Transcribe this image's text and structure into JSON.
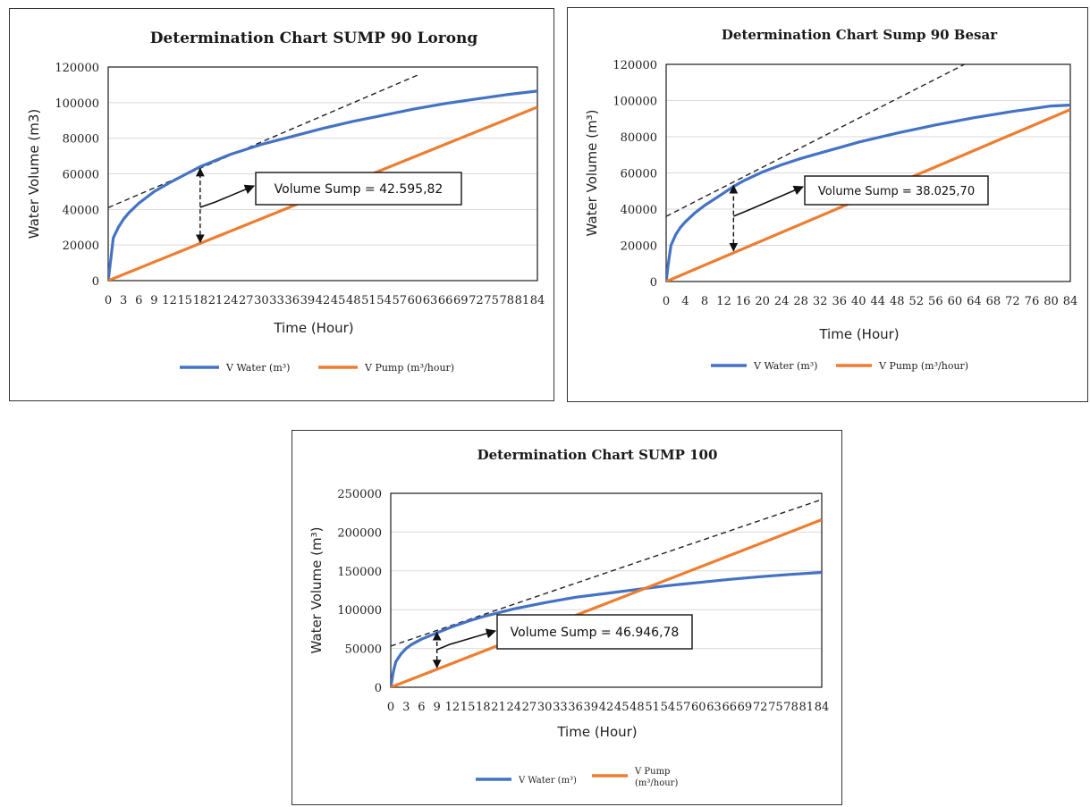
{
  "colors": {
    "water": "#4472C4",
    "pump": "#ED7D31",
    "grid": "#d9d9d9",
    "tangent": "#222222"
  },
  "chart_data": [
    {
      "type": "line",
      "title": "Determination Chart SUMP 90 Lorong",
      "xlabel": "Time (Hour)",
      "ylabel": "Water Volume (m3)",
      "xlim": [
        0,
        84
      ],
      "ylim": [
        0,
        120000
      ],
      "y_ticks": [
        "0",
        "20000",
        "40000",
        "60000",
        "80000",
        "100000",
        "120000"
      ],
      "x_tick_labels": [
        "0",
        "3",
        "6",
        "9",
        "12",
        "15",
        "18",
        "21",
        "24",
        "27",
        "30",
        "33",
        "36",
        "39",
        "42",
        "45",
        "48",
        "51",
        "54",
        "57",
        "60",
        "63",
        "66",
        "69",
        "72",
        "75",
        "78",
        "81",
        "84"
      ],
      "grid": true,
      "legend": "bottom",
      "series": [
        {
          "name": "V Water (m³)",
          "x": [
            0,
            0.5,
            1,
            2,
            3,
            4,
            6,
            9,
            12,
            15,
            18,
            24,
            30,
            36,
            42,
            48,
            54,
            60,
            66,
            72,
            78,
            84
          ],
          "values": [
            0,
            12000,
            24000,
            30000,
            34500,
            38000,
            43500,
            50000,
            55000,
            59500,
            64000,
            71000,
            76500,
            81000,
            85500,
            89500,
            93000,
            96500,
            99500,
            102000,
            104500,
            106500
          ]
        },
        {
          "name": "V Pump (m³/hour)",
          "x": [
            0,
            84
          ],
          "values": [
            0,
            97500
          ]
        }
      ],
      "tangent": {
        "x": [
          0,
          61
        ],
        "values": [
          41000,
          116000
        ]
      },
      "arrow_x": 18,
      "arrow_y": [
        20500,
        64000
      ],
      "annotation": "Volume Sump = 42.595,82"
    },
    {
      "type": "line",
      "title": "Determination Chart Sump 90 Besar",
      "xlabel": "Time (Hour)",
      "ylabel": "Water Volume (m³)",
      "xlim": [
        0,
        84
      ],
      "ylim": [
        0,
        120000
      ],
      "y_ticks": [
        "0",
        "20000",
        "40000",
        "60000",
        "80000",
        "100000",
        "120000"
      ],
      "x_tick_labels": [
        "0",
        "4",
        "8",
        "12",
        "16",
        "20",
        "24",
        "28",
        "32",
        "36",
        "40",
        "44",
        "48",
        "52",
        "56",
        "60",
        "64",
        "68",
        "72",
        "76",
        "80",
        "84"
      ],
      "grid": true,
      "legend": "bottom",
      "series": [
        {
          "name": "V Water (m³)",
          "x": [
            0,
            0.5,
            1,
            2,
            3,
            4,
            6,
            8,
            10,
            12,
            14,
            16,
            20,
            24,
            28,
            32,
            36,
            40,
            48,
            56,
            64,
            72,
            80,
            84
          ],
          "values": [
            0,
            11000,
            20000,
            26000,
            30000,
            33000,
            38000,
            42000,
            45500,
            49000,
            52500,
            55500,
            60500,
            64500,
            68000,
            71000,
            74000,
            77000,
            82000,
            86500,
            90500,
            94000,
            97000,
            97500
          ]
        },
        {
          "name": "V Pump (m³/hour)",
          "x": [
            0,
            84
          ],
          "values": [
            0,
            95000
          ]
        }
      ],
      "tangent": {
        "x": [
          0,
          62
        ],
        "values": [
          36000,
          120000
        ]
      },
      "arrow_x": 14,
      "arrow_y": [
        16000,
        54000
      ],
      "annotation": "Volume Sump = 38.025,70"
    },
    {
      "type": "line",
      "title": "Determination Chart SUMP 100",
      "xlabel": "Time (Hour)",
      "ylabel": "Water Volume (m³)",
      "xlim": [
        0,
        84
      ],
      "ylim": [
        0,
        250000
      ],
      "y_ticks": [
        "0",
        "50000",
        "100000",
        "150000",
        "200000",
        "250000"
      ],
      "x_tick_labels": [
        "0",
        "3",
        "6",
        "9",
        "12",
        "15",
        "18",
        "21",
        "24",
        "27",
        "30",
        "33",
        "36",
        "39",
        "42",
        "45",
        "48",
        "51",
        "54",
        "57",
        "60",
        "63",
        "66",
        "69",
        "72",
        "75",
        "78",
        "81",
        "84"
      ],
      "grid": true,
      "legend": "bottom",
      "series": [
        {
          "name": "V Water (m³)",
          "x": [
            0,
            0.5,
            1,
            2,
            3,
            4,
            6,
            9,
            12,
            15,
            18,
            24,
            30,
            36,
            42,
            48,
            54,
            60,
            66,
            72,
            78,
            84
          ],
          "values": [
            0,
            20000,
            33000,
            43000,
            50000,
            55000,
            62000,
            70000,
            78000,
            85000,
            91000,
            101000,
            109000,
            116000,
            121000,
            126000,
            131000,
            135000,
            139000,
            142500,
            145500,
            148000
          ]
        },
        {
          "name": "V Pump (m³/hour)",
          "x": [
            0,
            84
          ],
          "values": [
            0,
            216000
          ]
        }
      ],
      "tangent": {
        "x": [
          0,
          84
        ],
        "values": [
          53000,
          242000
        ]
      },
      "arrow_x": 9,
      "arrow_y": [
        23000,
        73000
      ],
      "annotation": "Volume Sump = 46.946,78"
    }
  ]
}
